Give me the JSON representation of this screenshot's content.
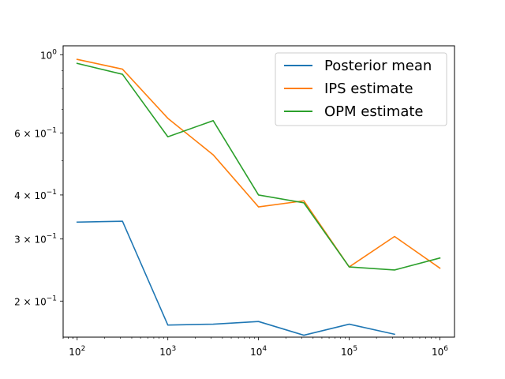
{
  "chart_data": {
    "type": "line",
    "title": "",
    "xlabel": "",
    "ylabel": "",
    "xscale": "log",
    "yscale": "log",
    "xlim": [
      70,
      1450000
    ],
    "ylim": [
      0.158,
      1.06
    ],
    "grid": false,
    "legend_position": "top-right",
    "x_ticks": [
      {
        "value": 100,
        "base": "10",
        "exp": "2"
      },
      {
        "value": 1000,
        "base": "10",
        "exp": "3"
      },
      {
        "value": 10000,
        "base": "10",
        "exp": "4"
      },
      {
        "value": 100000,
        "base": "10",
        "exp": "5"
      },
      {
        "value": 1000000,
        "base": "10",
        "exp": "6"
      }
    ],
    "y_ticks": [
      {
        "value": 1.0,
        "mant": "",
        "base": "10",
        "exp": "0"
      },
      {
        "value": 0.6,
        "mant": "6 × ",
        "base": "10",
        "exp": "−1"
      },
      {
        "value": 0.4,
        "mant": "4 × ",
        "base": "10",
        "exp": "−1"
      },
      {
        "value": 0.3,
        "mant": "3 × ",
        "base": "10",
        "exp": "−1"
      },
      {
        "value": 0.2,
        "mant": "2 × ",
        "base": "10",
        "exp": "−1"
      }
    ],
    "series": [
      {
        "name": "Posterior mean",
        "color": "#1f77b4",
        "x": [
          100,
          316,
          1000,
          3162,
          10000,
          31623,
          100000,
          316228
        ],
        "y": [
          0.335,
          0.337,
          0.171,
          0.172,
          0.175,
          0.16,
          0.172,
          0.161
        ]
      },
      {
        "name": "IPS estimate",
        "color": "#ff7f0e",
        "x": [
          100,
          316,
          1000,
          3162,
          10000,
          31623,
          100000,
          316228,
          1000000
        ],
        "y": [
          0.97,
          0.91,
          0.66,
          0.52,
          0.37,
          0.385,
          0.25,
          0.305,
          0.248
        ]
      },
      {
        "name": "OPM estimate",
        "color": "#2ca02c",
        "x": [
          100,
          316,
          1000,
          3162,
          10000,
          31623,
          100000,
          316228,
          1000000
        ],
        "y": [
          0.945,
          0.88,
          0.585,
          0.65,
          0.4,
          0.38,
          0.25,
          0.245,
          0.265
        ]
      }
    ]
  }
}
